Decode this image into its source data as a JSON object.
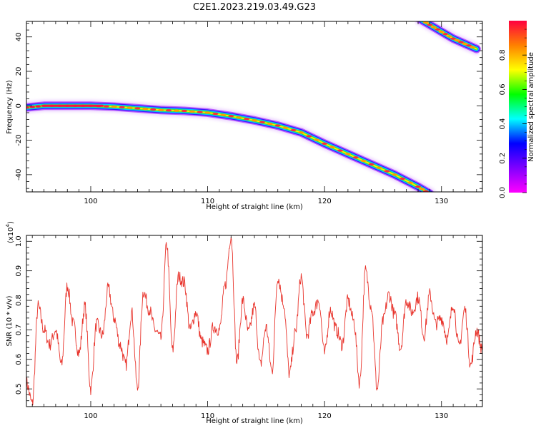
{
  "title": "C2E1.2023.219.03.49.G23",
  "chart_data": [
    {
      "type": "heatmap",
      "xlabel": "Height of straight line (km)",
      "ylabel": "Frequency (Hz)",
      "xlim": [
        94.5,
        133.5
      ],
      "ylim": [
        -50,
        49
      ],
      "xticks": [
        100,
        110,
        120,
        130
      ],
      "yticks": [
        -40,
        -20,
        0,
        20,
        40
      ],
      "colorbar": {
        "label": "Normalized spectral amplitude",
        "range": [
          0.0,
          1.0
        ],
        "ticks": [
          "0.0",
          "0.2",
          "0.4",
          "0.6",
          "0.8"
        ],
        "tick_values": [
          0.0,
          0.2,
          0.4,
          0.6,
          0.8
        ],
        "colormap": [
          "#ff00ff",
          "#8000ff",
          "#0000ff",
          "#00ffff",
          "#00ff00",
          "#ffff00",
          "#ff8000",
          "#ff0040"
        ]
      },
      "traces": [
        {
          "name": "",
          "points": [
            [
              94.5,
              -1
            ],
            [
              96,
              0
            ],
            [
              98,
              0
            ],
            [
              100,
              0
            ],
            [
              102,
              -0.5
            ],
            [
              104,
              -1.5
            ],
            [
              106,
              -2.5
            ],
            [
              108,
              -3
            ],
            [
              110,
              -4
            ],
            [
              112,
              -6
            ],
            [
              114,
              -8.5
            ],
            [
              116,
              -11.5
            ],
            [
              118,
              -15.5
            ],
            [
              120,
              -22
            ],
            [
              122,
              -28
            ],
            [
              124,
              -34
            ],
            [
              126,
              -40
            ],
            [
              128,
              -47
            ],
            [
              129,
              -51
            ]
          ]
        },
        {
          "name": "",
          "points": [
            [
              128,
              51
            ],
            [
              129,
              47
            ],
            [
              130,
              43
            ],
            [
              131,
              39
            ],
            [
              132,
              36
            ],
            [
              133,
              33
            ]
          ]
        }
      ]
    },
    {
      "type": "line",
      "xlabel": "Height of straight line (km)",
      "ylabel": "SNR (10 * v/v)",
      "multiplier_label": "(x10",
      "multiplier_exp": "4",
      "xlim": [
        94.5,
        133.5
      ],
      "ylim": [
        0.44,
        1.02
      ],
      "xticks": [
        100,
        110,
        120,
        130
      ],
      "yticks": [
        0.5,
        0.6,
        0.7,
        0.8,
        0.9,
        1.0
      ],
      "color": "#e8322a",
      "series": [
        {
          "name": "",
          "x": [
            94.5,
            95.0,
            95.5,
            96.0,
            96.5,
            97.0,
            97.5,
            98.0,
            98.5,
            99.0,
            99.5,
            100.0,
            100.5,
            101.0,
            101.5,
            102.0,
            102.5,
            103.0,
            103.5,
            104.0,
            104.5,
            105.0,
            105.5,
            106.0,
            106.5,
            107.0,
            107.5,
            108.0,
            108.5,
            109.0,
            109.5,
            110.0,
            110.5,
            111.0,
            111.5,
            112.0,
            112.5,
            113.0,
            113.5,
            114.0,
            114.5,
            115.0,
            115.5,
            116.0,
            116.5,
            117.0,
            117.5,
            118.0,
            118.5,
            119.0,
            119.5,
            120.0,
            120.5,
            121.0,
            121.5,
            122.0,
            122.5,
            123.0,
            123.5,
            124.0,
            124.5,
            125.0,
            125.5,
            126.0,
            126.5,
            127.0,
            127.5,
            128.0,
            128.5,
            129.0,
            129.5,
            130.0,
            130.5,
            131.0,
            131.5,
            132.0,
            132.5,
            133.0,
            133.5
          ],
          "values": [
            0.52,
            0.45,
            0.78,
            0.7,
            0.65,
            0.7,
            0.58,
            0.85,
            0.72,
            0.62,
            0.78,
            0.5,
            0.72,
            0.68,
            0.84,
            0.74,
            0.65,
            0.58,
            0.76,
            0.5,
            0.83,
            0.77,
            0.7,
            0.67,
            0.99,
            0.63,
            0.88,
            0.86,
            0.7,
            0.76,
            0.66,
            0.63,
            0.71,
            0.7,
            0.85,
            1.02,
            0.59,
            0.8,
            0.69,
            0.78,
            0.58,
            0.71,
            0.56,
            0.88,
            0.79,
            0.55,
            0.69,
            0.88,
            0.68,
            0.76,
            0.8,
            0.62,
            0.77,
            0.7,
            0.65,
            0.8,
            0.73,
            0.52,
            0.9,
            0.78,
            0.5,
            0.73,
            0.82,
            0.75,
            0.64,
            0.8,
            0.76,
            0.81,
            0.68,
            0.82,
            0.72,
            0.74,
            0.67,
            0.79,
            0.64,
            0.77,
            0.58,
            0.7,
            0.63
          ]
        }
      ]
    }
  ]
}
